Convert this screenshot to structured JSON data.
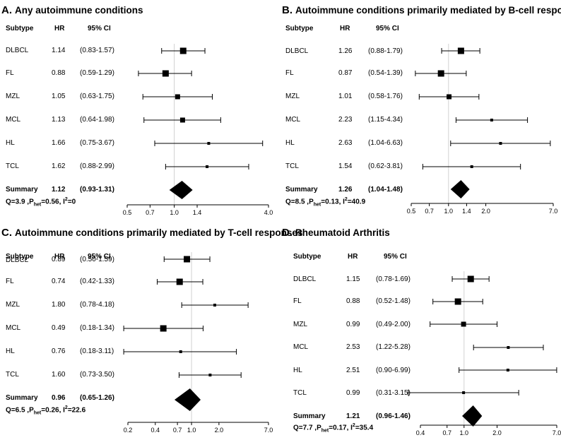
{
  "column_headers": {
    "subtype": "Subtype",
    "hr": "HR",
    "ci": "95% CI"
  },
  "summary_label": "Summary",
  "stats_labels": {
    "q": "Q=",
    "p_prefix": "P",
    "p_sub": "het",
    "i_prefix": "I",
    "i_sup": "2"
  },
  "colors": {
    "marker": "#000000",
    "refline": "#d0d0d0",
    "axis": "#000000"
  },
  "chart_data": [
    {
      "type": "forest",
      "letter": "A.",
      "title": "Any autoimmune conditions",
      "xscale": "log",
      "xlim": [
        0.5,
        4.0
      ],
      "xticks": [
        "0.5",
        "0.7",
        "1.0",
        "1.4",
        "4.0"
      ],
      "ref_value": 1.0,
      "rows": [
        {
          "subtype": "DLBCL",
          "hr": "1.14",
          "ci": "(0.83-1.57)",
          "est": 1.14,
          "lo": 0.83,
          "hi": 1.57,
          "weight": "large"
        },
        {
          "subtype": "FL",
          "hr": "0.88",
          "ci": "(0.59-1.29)",
          "est": 0.88,
          "lo": 0.59,
          "hi": 1.29,
          "weight": "large"
        },
        {
          "subtype": "MZL",
          "hr": "1.05",
          "ci": "(0.63-1.75)",
          "est": 1.05,
          "lo": 0.63,
          "hi": 1.75,
          "weight": "medium"
        },
        {
          "subtype": "MCL",
          "hr": "1.13",
          "ci": "(0.64-1.98)",
          "est": 1.13,
          "lo": 0.64,
          "hi": 1.98,
          "weight": "medium"
        },
        {
          "subtype": "HL",
          "hr": "1.66",
          "ci": "(0.75-3.67)",
          "est": 1.66,
          "lo": 0.75,
          "hi": 3.67,
          "weight": "small"
        },
        {
          "subtype": "TCL",
          "hr": "1.62",
          "ci": "(0.88-2.99)",
          "est": 1.62,
          "lo": 0.88,
          "hi": 2.99,
          "weight": "small"
        }
      ],
      "summary": {
        "hr": "1.12",
        "ci": "(0.93-1.31)",
        "est": 1.12,
        "lo": 0.93,
        "hi": 1.31
      },
      "stats": {
        "q": "3.9",
        "p": "0.56",
        "i2": "0"
      }
    },
    {
      "type": "forest",
      "letter": "B.",
      "title": "Autoimmune conditions primarily mediated by B-cell responses",
      "xscale": "log",
      "xlim": [
        0.5,
        7.0
      ],
      "xticks": [
        "0.5",
        "0.7",
        "1.0",
        "1.4",
        "2.0",
        "7.0"
      ],
      "ref_value": 1.0,
      "rows": [
        {
          "subtype": "DLBCL",
          "hr": "1.26",
          "ci": "(0.88-1.79)",
          "est": 1.26,
          "lo": 0.88,
          "hi": 1.79,
          "weight": "large"
        },
        {
          "subtype": "FL",
          "hr": "0.87",
          "ci": "(0.54-1.39)",
          "est": 0.87,
          "lo": 0.54,
          "hi": 1.39,
          "weight": "large"
        },
        {
          "subtype": "MZL",
          "hr": "1.01",
          "ci": "(0.58-1.76)",
          "est": 1.01,
          "lo": 0.58,
          "hi": 1.76,
          "weight": "medium"
        },
        {
          "subtype": "MCL",
          "hr": "2.23",
          "ci": "(1.15-4.34)",
          "est": 2.23,
          "lo": 1.15,
          "hi": 4.34,
          "weight": "small"
        },
        {
          "subtype": "HL",
          "hr": "2.63",
          "ci": "(1.04-6.63)",
          "est": 2.63,
          "lo": 1.04,
          "hi": 6.63,
          "weight": "small"
        },
        {
          "subtype": "TCL",
          "hr": "1.54",
          "ci": "(0.62-3.81)",
          "est": 1.54,
          "lo": 0.62,
          "hi": 3.81,
          "weight": "small"
        }
      ],
      "summary": {
        "hr": "1.26",
        "ci": "(1.04-1.48)",
        "est": 1.26,
        "lo": 1.04,
        "hi": 1.48
      },
      "stats": {
        "q": "8.5",
        "p": "0.13",
        "i2": "40.9"
      }
    },
    {
      "type": "forest",
      "letter": "C.",
      "title": "Autoimmune conditions primarily mediated by T-cell responses",
      "xscale": "log",
      "xlim": [
        0.2,
        7.0
      ],
      "xticks": [
        "0.2",
        "0.4",
        "0.7",
        "1.0",
        "2.0",
        "7.0"
      ],
      "ref_value": 1.0,
      "rows": [
        {
          "subtype": "DLBCL",
          "hr": "0.89",
          "ci": "(0.50-1.59)",
          "est": 0.89,
          "lo": 0.5,
          "hi": 1.59,
          "weight": "large"
        },
        {
          "subtype": "FL",
          "hr": "0.74",
          "ci": "(0.42-1.33)",
          "est": 0.74,
          "lo": 0.42,
          "hi": 1.33,
          "weight": "large"
        },
        {
          "subtype": "MZL",
          "hr": "1.80",
          "ci": "(0.78-4.18)",
          "est": 1.8,
          "lo": 0.78,
          "hi": 4.18,
          "weight": "small"
        },
        {
          "subtype": "MCL",
          "hr": "0.49",
          "ci": "(0.18-1.34)",
          "est": 0.49,
          "lo": 0.18,
          "hi": 1.34,
          "weight": "large"
        },
        {
          "subtype": "HL",
          "hr": "0.76",
          "ci": "(0.18-3.11)",
          "est": 0.76,
          "lo": 0.18,
          "hi": 3.11,
          "weight": "small"
        },
        {
          "subtype": "TCL",
          "hr": "1.60",
          "ci": "(0.73-3.50)",
          "est": 1.6,
          "lo": 0.73,
          "hi": 3.5,
          "weight": "small"
        }
      ],
      "summary": {
        "hr": "0.96",
        "ci": "(0.65-1.26)",
        "est": 0.96,
        "lo": 0.65,
        "hi": 1.26
      },
      "stats": {
        "q": "6.5",
        "p": "0.26",
        "i2": "22.6"
      }
    },
    {
      "type": "forest",
      "letter": "D.",
      "title": "Rheumatoid Arthritis",
      "xscale": "log",
      "xlim": [
        0.4,
        7.0
      ],
      "xticks": [
        "0.4",
        "0.7",
        "1.0",
        "2.0",
        "7.0"
      ],
      "ref_value": 1.0,
      "rows": [
        {
          "subtype": "DLBCL",
          "hr": "1.15",
          "ci": "(0.78-1.69)",
          "est": 1.15,
          "lo": 0.78,
          "hi": 1.69,
          "weight": "large"
        },
        {
          "subtype": "FL",
          "hr": "0.88",
          "ci": "(0.52-1.48)",
          "est": 0.88,
          "lo": 0.52,
          "hi": 1.48,
          "weight": "large"
        },
        {
          "subtype": "MZL",
          "hr": "0.99",
          "ci": "(0.49-2.00)",
          "est": 0.99,
          "lo": 0.49,
          "hi": 2.0,
          "weight": "medium"
        },
        {
          "subtype": "MCL",
          "hr": "2.53",
          "ci": "(1.22-5.28)",
          "est": 2.53,
          "lo": 1.22,
          "hi": 5.28,
          "weight": "small"
        },
        {
          "subtype": "HL",
          "hr": "2.51",
          "ci": "(0.90-6.99)",
          "est": 2.51,
          "lo": 0.9,
          "hi": 6.99,
          "weight": "small"
        },
        {
          "subtype": "TCL",
          "hr": "0.99",
          "ci": "(0.31-3.15)",
          "est": 0.99,
          "lo": 0.31,
          "hi": 3.15,
          "weight": "small"
        }
      ],
      "summary": {
        "hr": "1.21",
        "ci": "(0.96-1.46)",
        "est": 1.21,
        "lo": 0.96,
        "hi": 1.46
      },
      "stats": {
        "q": "7.7",
        "p": "0.17",
        "i2": "35.4"
      }
    }
  ]
}
